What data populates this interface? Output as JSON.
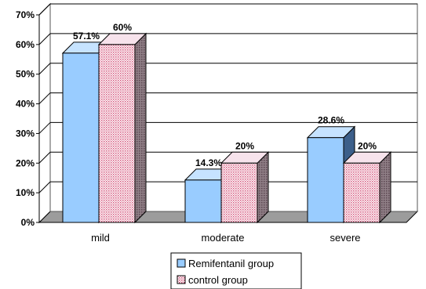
{
  "chart_data": {
    "type": "bar",
    "style": "3d-clustered",
    "categories": [
      "mild",
      "moderate",
      "severe"
    ],
    "series": [
      {
        "name": "Remifentanil group",
        "values": [
          57.1,
          14.3,
          28.6
        ],
        "labels": [
          "57.1%",
          "14.3%",
          "28.6%"
        ],
        "color": "#99ccff"
      },
      {
        "name": "control group",
        "values": [
          60,
          20,
          20
        ],
        "labels": [
          "60%",
          "20%",
          "20%"
        ],
        "color": "#f4d6e4"
      }
    ],
    "yticks": [
      "0%",
      "10%",
      "20%",
      "30%",
      "40%",
      "50%",
      "60%",
      "70%"
    ],
    "ylim": [
      0,
      70
    ],
    "grid": true,
    "legend_position": "bottom"
  }
}
